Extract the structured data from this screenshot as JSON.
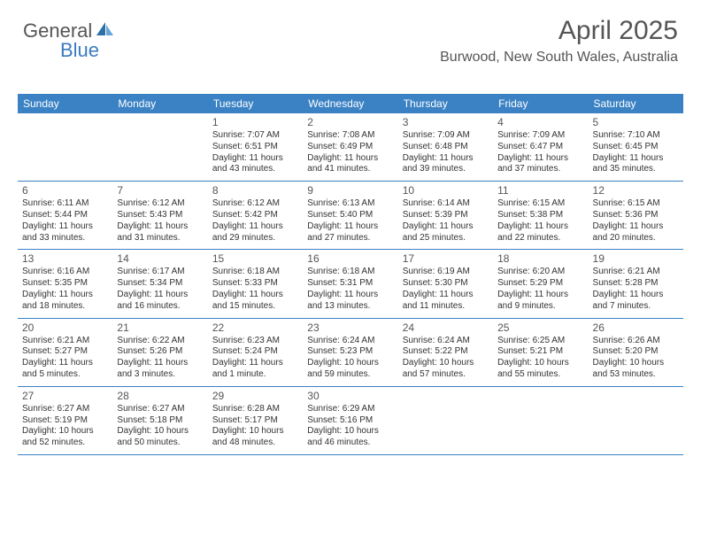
{
  "logo": {
    "text1": "General",
    "text2": "Blue"
  },
  "header": {
    "title": "April 2025",
    "location": "Burwood, New South Wales, Australia"
  },
  "calendar": {
    "type": "table",
    "header_bg": "#3b82c4",
    "header_fg": "#ffffff",
    "border_color": "#3b82c4",
    "columns": [
      "Sunday",
      "Monday",
      "Tuesday",
      "Wednesday",
      "Thursday",
      "Friday",
      "Saturday"
    ],
    "weeks": [
      [
        null,
        null,
        {
          "n": "1",
          "sr": "Sunrise: 7:07 AM",
          "ss": "Sunset: 6:51 PM",
          "d1": "Daylight: 11 hours",
          "d2": "and 43 minutes."
        },
        {
          "n": "2",
          "sr": "Sunrise: 7:08 AM",
          "ss": "Sunset: 6:49 PM",
          "d1": "Daylight: 11 hours",
          "d2": "and 41 minutes."
        },
        {
          "n": "3",
          "sr": "Sunrise: 7:09 AM",
          "ss": "Sunset: 6:48 PM",
          "d1": "Daylight: 11 hours",
          "d2": "and 39 minutes."
        },
        {
          "n": "4",
          "sr": "Sunrise: 7:09 AM",
          "ss": "Sunset: 6:47 PM",
          "d1": "Daylight: 11 hours",
          "d2": "and 37 minutes."
        },
        {
          "n": "5",
          "sr": "Sunrise: 7:10 AM",
          "ss": "Sunset: 6:45 PM",
          "d1": "Daylight: 11 hours",
          "d2": "and 35 minutes."
        }
      ],
      [
        {
          "n": "6",
          "sr": "Sunrise: 6:11 AM",
          "ss": "Sunset: 5:44 PM",
          "d1": "Daylight: 11 hours",
          "d2": "and 33 minutes."
        },
        {
          "n": "7",
          "sr": "Sunrise: 6:12 AM",
          "ss": "Sunset: 5:43 PM",
          "d1": "Daylight: 11 hours",
          "d2": "and 31 minutes."
        },
        {
          "n": "8",
          "sr": "Sunrise: 6:12 AM",
          "ss": "Sunset: 5:42 PM",
          "d1": "Daylight: 11 hours",
          "d2": "and 29 minutes."
        },
        {
          "n": "9",
          "sr": "Sunrise: 6:13 AM",
          "ss": "Sunset: 5:40 PM",
          "d1": "Daylight: 11 hours",
          "d2": "and 27 minutes."
        },
        {
          "n": "10",
          "sr": "Sunrise: 6:14 AM",
          "ss": "Sunset: 5:39 PM",
          "d1": "Daylight: 11 hours",
          "d2": "and 25 minutes."
        },
        {
          "n": "11",
          "sr": "Sunrise: 6:15 AM",
          "ss": "Sunset: 5:38 PM",
          "d1": "Daylight: 11 hours",
          "d2": "and 22 minutes."
        },
        {
          "n": "12",
          "sr": "Sunrise: 6:15 AM",
          "ss": "Sunset: 5:36 PM",
          "d1": "Daylight: 11 hours",
          "d2": "and 20 minutes."
        }
      ],
      [
        {
          "n": "13",
          "sr": "Sunrise: 6:16 AM",
          "ss": "Sunset: 5:35 PM",
          "d1": "Daylight: 11 hours",
          "d2": "and 18 minutes."
        },
        {
          "n": "14",
          "sr": "Sunrise: 6:17 AM",
          "ss": "Sunset: 5:34 PM",
          "d1": "Daylight: 11 hours",
          "d2": "and 16 minutes."
        },
        {
          "n": "15",
          "sr": "Sunrise: 6:18 AM",
          "ss": "Sunset: 5:33 PM",
          "d1": "Daylight: 11 hours",
          "d2": "and 15 minutes."
        },
        {
          "n": "16",
          "sr": "Sunrise: 6:18 AM",
          "ss": "Sunset: 5:31 PM",
          "d1": "Daylight: 11 hours",
          "d2": "and 13 minutes."
        },
        {
          "n": "17",
          "sr": "Sunrise: 6:19 AM",
          "ss": "Sunset: 5:30 PM",
          "d1": "Daylight: 11 hours",
          "d2": "and 11 minutes."
        },
        {
          "n": "18",
          "sr": "Sunrise: 6:20 AM",
          "ss": "Sunset: 5:29 PM",
          "d1": "Daylight: 11 hours",
          "d2": "and 9 minutes."
        },
        {
          "n": "19",
          "sr": "Sunrise: 6:21 AM",
          "ss": "Sunset: 5:28 PM",
          "d1": "Daylight: 11 hours",
          "d2": "and 7 minutes."
        }
      ],
      [
        {
          "n": "20",
          "sr": "Sunrise: 6:21 AM",
          "ss": "Sunset: 5:27 PM",
          "d1": "Daylight: 11 hours",
          "d2": "and 5 minutes."
        },
        {
          "n": "21",
          "sr": "Sunrise: 6:22 AM",
          "ss": "Sunset: 5:26 PM",
          "d1": "Daylight: 11 hours",
          "d2": "and 3 minutes."
        },
        {
          "n": "22",
          "sr": "Sunrise: 6:23 AM",
          "ss": "Sunset: 5:24 PM",
          "d1": "Daylight: 11 hours",
          "d2": "and 1 minute."
        },
        {
          "n": "23",
          "sr": "Sunrise: 6:24 AM",
          "ss": "Sunset: 5:23 PM",
          "d1": "Daylight: 10 hours",
          "d2": "and 59 minutes."
        },
        {
          "n": "24",
          "sr": "Sunrise: 6:24 AM",
          "ss": "Sunset: 5:22 PM",
          "d1": "Daylight: 10 hours",
          "d2": "and 57 minutes."
        },
        {
          "n": "25",
          "sr": "Sunrise: 6:25 AM",
          "ss": "Sunset: 5:21 PM",
          "d1": "Daylight: 10 hours",
          "d2": "and 55 minutes."
        },
        {
          "n": "26",
          "sr": "Sunrise: 6:26 AM",
          "ss": "Sunset: 5:20 PM",
          "d1": "Daylight: 10 hours",
          "d2": "and 53 minutes."
        }
      ],
      [
        {
          "n": "27",
          "sr": "Sunrise: 6:27 AM",
          "ss": "Sunset: 5:19 PM",
          "d1": "Daylight: 10 hours",
          "d2": "and 52 minutes."
        },
        {
          "n": "28",
          "sr": "Sunrise: 6:27 AM",
          "ss": "Sunset: 5:18 PM",
          "d1": "Daylight: 10 hours",
          "d2": "and 50 minutes."
        },
        {
          "n": "29",
          "sr": "Sunrise: 6:28 AM",
          "ss": "Sunset: 5:17 PM",
          "d1": "Daylight: 10 hours",
          "d2": "and 48 minutes."
        },
        {
          "n": "30",
          "sr": "Sunrise: 6:29 AM",
          "ss": "Sunset: 5:16 PM",
          "d1": "Daylight: 10 hours",
          "d2": "and 46 minutes."
        },
        null,
        null,
        null
      ]
    ]
  }
}
